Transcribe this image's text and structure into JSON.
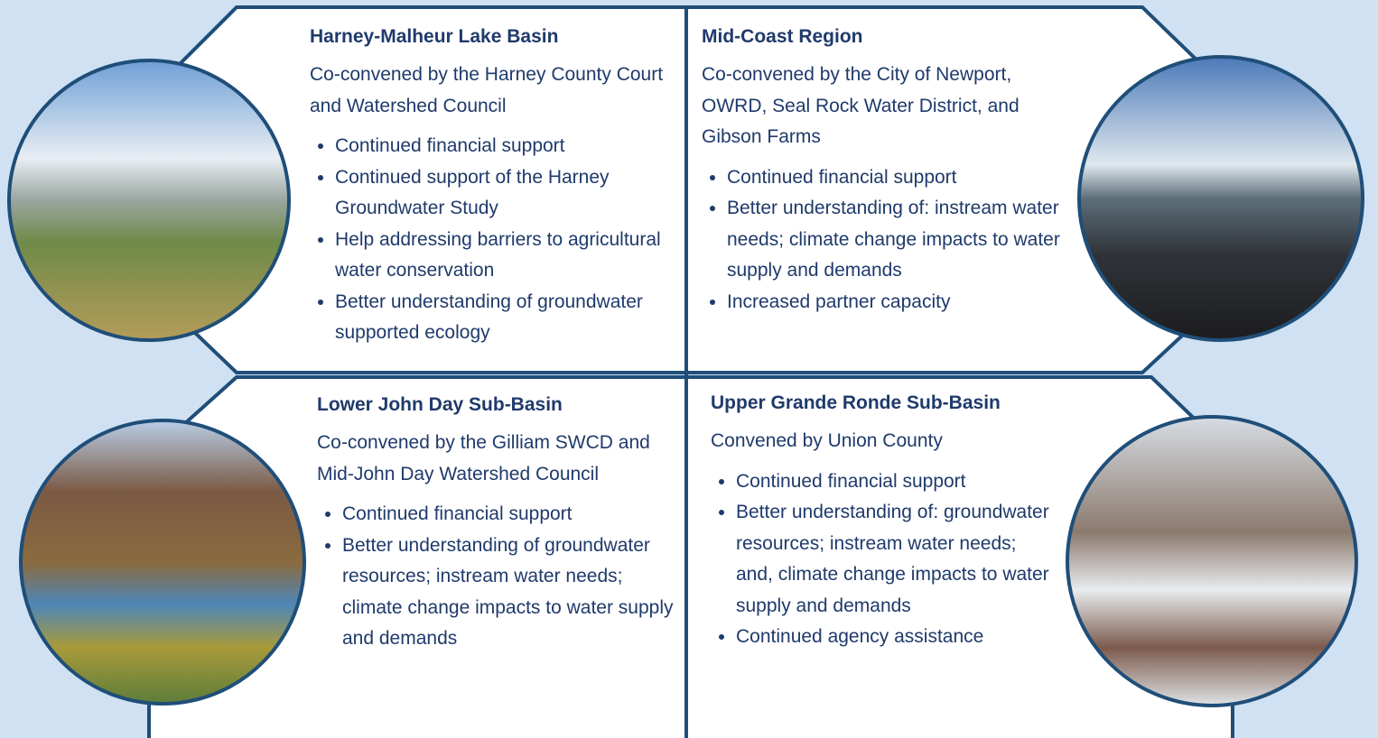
{
  "panels": [
    {
      "title": "Harney-Malheur Lake Basin",
      "convened": "Co-convened by the Harney County Court and Watershed Council",
      "bullets": [
        "Continued financial support",
        "Continued support of the Harney Groundwater Study",
        "Help addressing barriers to agricultural water conservation",
        "Better understanding of groundwater supported ecology"
      ]
    },
    {
      "title": "Mid-Coast Region",
      "convened": "Co-convened by the City of Newport, OWRD, Seal Rock Water District, and Gibson Farms",
      "bullets": [
        "Continued financial support",
        "Better understanding of: instream water needs; climate change impacts to water supply and demands",
        "Increased partner capacity"
      ]
    },
    {
      "title": "Lower John Day Sub-Basin",
      "convened": "Co-convened by the Gilliam SWCD and Mid-John Day Watershed Council",
      "bullets": [
        "Continued financial support",
        "Better understanding of groundwater resources; instream water needs; climate change impacts to water supply and demands"
      ]
    },
    {
      "title": "Upper Grande Ronde Sub-Basin",
      "convened": "Convened by Union County",
      "bullets": [
        "Continued financial support",
        "Better understanding of: groundwater resources; instream water needs; and, climate change impacts to water supply and demands",
        "Continued agency assistance"
      ]
    }
  ]
}
